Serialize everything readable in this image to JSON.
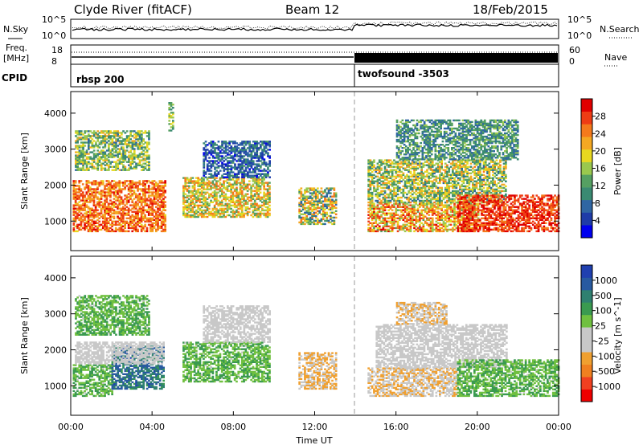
{
  "header": {
    "station": "Clyde River (fitACF)",
    "beam": "Beam 12",
    "date": "18/Feb/2015"
  },
  "noise_panel": {
    "left_label": "N.Sky",
    "right_label": "N.Search",
    "left_ticks": [
      "10^5",
      "10^0"
    ],
    "right_ticks": [
      "10^5",
      "10^0"
    ]
  },
  "freq_panel": {
    "left_label_1": "Freq.",
    "left_label_2": "[MHz]",
    "right_label": "Nave",
    "left_ticks": [
      "18",
      "8"
    ],
    "right_ticks": [
      "60",
      "0"
    ]
  },
  "cpid_panel": {
    "label": "CPID",
    "segments": [
      {
        "name": "rbsp 200",
        "start_hour": 0
      },
      {
        "name": "twofsound -3503",
        "start_hour": 14
      }
    ]
  },
  "x_axis": {
    "label": "Time UT",
    "ticks": [
      "00:00",
      "04:00",
      "08:00",
      "12:00",
      "16:00",
      "20:00",
      "00:00"
    ],
    "range_hours": [
      0,
      24
    ]
  },
  "chart_data": [
    {
      "type": "heatmap",
      "name": "power",
      "ylabel": "Slant Range [km]",
      "ylim": [
        180,
        4600
      ],
      "yticks": [
        1000,
        2000,
        3000,
        4000
      ],
      "colorbar": {
        "title": "Power [dB]",
        "ticks": [
          "28",
          "24",
          "20",
          "16",
          "12",
          "8",
          "4"
        ],
        "range": [
          0,
          32
        ],
        "colors": [
          "#0000ee",
          "#1e3ca8",
          "#2f66a3",
          "#3a8a72",
          "#55a062",
          "#9ac84e",
          "#e8d820",
          "#f4a822",
          "#f47a1c",
          "#ee3c14",
          "#e00000"
        ]
      },
      "bands": [
        {
          "t0": 0.1,
          "t1": 4.6,
          "r0": 700,
          "r1": 2100,
          "v0": 20,
          "v1": 30
        },
        {
          "t0": 0.2,
          "t1": 3.8,
          "r0": 2400,
          "r1": 3500,
          "v0": 8,
          "v1": 22
        },
        {
          "t0": 4.8,
          "t1": 5.0,
          "r0": 3500,
          "r1": 4300,
          "v0": 10,
          "v1": 20
        },
        {
          "t0": 5.5,
          "t1": 9.8,
          "r0": 1100,
          "r1": 2200,
          "v0": 12,
          "v1": 26
        },
        {
          "t0": 6.5,
          "t1": 9.8,
          "r0": 2200,
          "r1": 3200,
          "v0": 2,
          "v1": 12
        },
        {
          "t0": 11.2,
          "t1": 13.0,
          "r0": 900,
          "r1": 1900,
          "v0": 6,
          "v1": 26
        },
        {
          "t0": 14.6,
          "t1": 20.0,
          "r0": 700,
          "r1": 1500,
          "v0": 14,
          "v1": 30
        },
        {
          "t0": 14.6,
          "t1": 21.4,
          "r0": 1500,
          "r1": 2700,
          "v0": 8,
          "v1": 24
        },
        {
          "t0": 19.0,
          "t1": 24.0,
          "r0": 700,
          "r1": 1700,
          "v0": 24,
          "v1": 32
        },
        {
          "t0": 16.0,
          "t1": 22.0,
          "r0": 2700,
          "r1": 3800,
          "v0": 6,
          "v1": 16
        }
      ]
    },
    {
      "type": "heatmap",
      "name": "velocity",
      "ylabel": "Slant Range [km]",
      "ylim": [
        180,
        4600
      ],
      "yticks": [
        1000,
        2000,
        3000,
        4000
      ],
      "colorbar": {
        "title": "Velocity [m s^-1]",
        "ticks": [
          "1000",
          "500",
          "100",
          "25",
          "-25",
          "-100",
          "-500",
          "-1000"
        ],
        "range": [
          -1200,
          1200
        ],
        "colors": [
          "#ee0000",
          "#f04020",
          "#f08020",
          "#f0a030",
          "#c8c8c8",
          "#c8c8c8",
          "#70c040",
          "#3a9a50",
          "#2f8070",
          "#285aa0",
          "#2040b0"
        ]
      },
      "bands": [
        {
          "t0": 0.1,
          "t1": 2.0,
          "r0": 700,
          "r1": 1600,
          "v0": 100,
          "v1": 500
        },
        {
          "t0": 2.0,
          "t1": 4.6,
          "r0": 900,
          "r1": 2100,
          "v0": 500,
          "v1": 1000
        },
        {
          "t0": 0.2,
          "t1": 4.6,
          "r0": 1600,
          "r1": 2200,
          "v0": -25,
          "v1": 25
        },
        {
          "t0": 0.2,
          "t1": 3.8,
          "r0": 2400,
          "r1": 3500,
          "v0": 100,
          "v1": 500
        },
        {
          "t0": 5.5,
          "t1": 9.8,
          "r0": 1100,
          "r1": 2200,
          "v0": 100,
          "v1": 500
        },
        {
          "t0": 6.5,
          "t1": 9.8,
          "r0": 2200,
          "r1": 3200,
          "v0": -25,
          "v1": 100
        },
        {
          "t0": 11.2,
          "t1": 13.0,
          "r0": 900,
          "r1": 1900,
          "v0": -500,
          "v1": -200
        },
        {
          "t0": 14.6,
          "t1": 19.0,
          "r0": 700,
          "r1": 1500,
          "v0": -500,
          "v1": -100
        },
        {
          "t0": 15.0,
          "t1": 21.4,
          "r0": 1500,
          "r1": 2700,
          "v0": -25,
          "v1": 25
        },
        {
          "t0": 16.0,
          "t1": 18.5,
          "r0": 2700,
          "r1": 3300,
          "v0": -500,
          "v1": -100
        },
        {
          "t0": 19.0,
          "t1": 24.0,
          "r0": 700,
          "r1": 1700,
          "v0": 100,
          "v1": 500
        }
      ]
    }
  ]
}
